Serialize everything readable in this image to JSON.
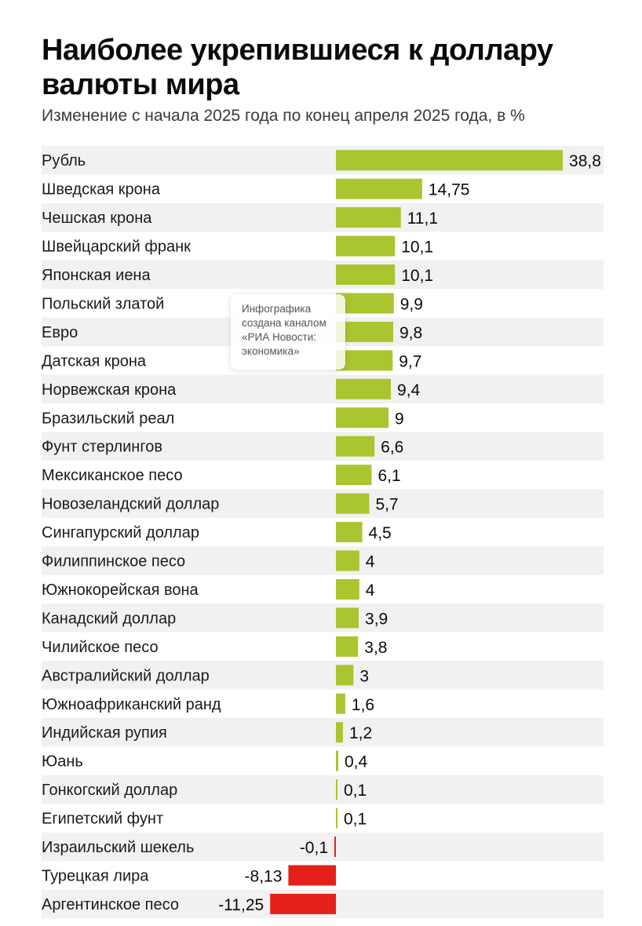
{
  "chart_data": {
    "type": "bar",
    "orientation": "horizontal",
    "title": "Наиболее укрепившиеся к доллару валюты мира",
    "subtitle": "Изменение с начала 2025 года по конец апреля 2025 года, в %",
    "categories": [
      "Рубль",
      "Шведская крона",
      "Чешская крона",
      "Швейцарский франк",
      "Японская иена",
      "Польский златой",
      "Евро",
      "Датская крона",
      "Норвежская крона",
      "Бразильский реал",
      "Фунт стерлингов",
      "Мексиканское песо",
      "Новозеландский доллар",
      "Сингапурский доллар",
      "Филиппинское песо",
      "Южнокорейская вона",
      "Канадский доллар",
      "Чилийское песо",
      "Австралийский доллар",
      "Южноафриканский ранд",
      "Индийская рупия",
      "Юань",
      "Гонкогский доллар",
      "Египетский фунт",
      "Израильский шекель",
      "Турецкая лира",
      "Аргентинское песо"
    ],
    "values": [
      38.8,
      14.75,
      11.1,
      10.1,
      10.1,
      9.9,
      9.8,
      9.7,
      9.4,
      9,
      6.6,
      6.1,
      5.7,
      4.5,
      4,
      4,
      3.9,
      3.8,
      3,
      1.6,
      1.2,
      0.4,
      0.1,
      0.1,
      -0.1,
      -8.13,
      -11.25
    ],
    "value_labels": [
      "38,8",
      "14,75",
      "11,1",
      "10,1",
      "10,1",
      "9,9",
      "9,8",
      "9,7",
      "9,4",
      "9",
      "6,6",
      "6,1",
      "5,7",
      "4,5",
      "4",
      "4",
      "3,9",
      "3,8",
      "3",
      "1,6",
      "1,2",
      "0,4",
      "0,1",
      "0,1",
      "-0,1",
      "-8,13",
      "-11,25"
    ],
    "xlim": [
      -11.25,
      38.8
    ],
    "grid": false,
    "legend": "none",
    "colors": {
      "positive": "#a9c52f",
      "negative": "#e5201b",
      "row_stripe": "#f1f1f1"
    }
  },
  "watermark": {
    "text_lines": [
      "Инфографика",
      "создана каналом",
      "«РИА Новости:",
      "экономика»"
    ]
  }
}
